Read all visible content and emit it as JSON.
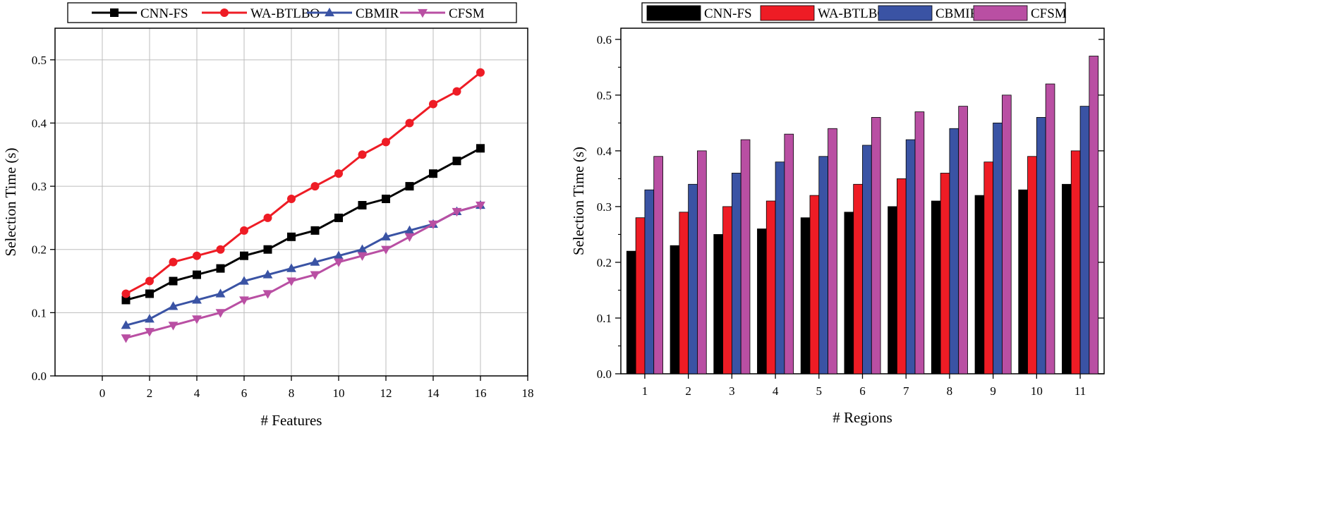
{
  "chart_data": [
    {
      "type": "line",
      "title": "",
      "xlabel": "# Features",
      "ylabel": "Selection Time (s)",
      "xlim": [
        -2,
        18
      ],
      "ylim": [
        0,
        0.55
      ],
      "xticks": [
        0,
        2,
        4,
        6,
        8,
        10,
        12,
        14,
        16,
        18
      ],
      "yticks": [
        0.0,
        0.1,
        0.2,
        0.3,
        0.4,
        0.5
      ],
      "ytick_labels": [
        "0.0",
        "0.1",
        "0.2",
        "0.3",
        "0.4",
        "0.5"
      ],
      "grid": true,
      "legend_position": "top",
      "x": [
        1,
        2,
        3,
        4,
        5,
        6,
        7,
        8,
        9,
        10,
        11,
        12,
        13,
        14,
        15,
        16
      ],
      "series": [
        {
          "name": "CNN-FS",
          "color": "#000000",
          "marker": "square",
          "values": [
            0.12,
            0.13,
            0.15,
            0.16,
            0.17,
            0.19,
            0.2,
            0.22,
            0.23,
            0.25,
            0.27,
            0.28,
            0.3,
            0.32,
            0.34,
            0.36
          ]
        },
        {
          "name": "WA-BTLBO",
          "color": "#ee1c25",
          "marker": "circle",
          "values": [
            0.13,
            0.15,
            0.18,
            0.19,
            0.2,
            0.23,
            0.25,
            0.28,
            0.3,
            0.32,
            0.35,
            0.37,
            0.4,
            0.43,
            0.45,
            0.48
          ]
        },
        {
          "name": "CBMIR",
          "color": "#3a53a4",
          "marker": "triangle-up",
          "values": [
            0.08,
            0.09,
            0.11,
            0.12,
            0.13,
            0.15,
            0.16,
            0.17,
            0.18,
            0.19,
            0.2,
            0.22,
            0.23,
            0.24,
            0.26,
            0.27
          ]
        },
        {
          "name": "CFSM",
          "color": "#b94fa3",
          "marker": "triangle-down",
          "values": [
            0.06,
            0.07,
            0.08,
            0.09,
            0.1,
            0.12,
            0.13,
            0.15,
            0.16,
            0.18,
            0.19,
            0.2,
            0.22,
            0.24,
            0.26,
            0.27
          ]
        }
      ]
    },
    {
      "type": "bar",
      "title": "",
      "xlabel": "# Regions",
      "ylabel": "Selection Time (s)",
      "ylim": [
        0,
        0.62
      ],
      "yticks": [
        0.0,
        0.1,
        0.2,
        0.3,
        0.4,
        0.5,
        0.6
      ],
      "ytick_labels": [
        "0.0",
        "0.1",
        "0.2",
        "0.3",
        "0.4",
        "0.5",
        "0.6"
      ],
      "grid": false,
      "legend_position": "top",
      "categories": [
        "1",
        "2",
        "3",
        "4",
        "5",
        "6",
        "7",
        "8",
        "9",
        "10",
        "11"
      ],
      "series": [
        {
          "name": "CNN-FS",
          "color": "#000000",
          "values": [
            0.22,
            0.23,
            0.25,
            0.26,
            0.28,
            0.29,
            0.3,
            0.31,
            0.32,
            0.33,
            0.34
          ]
        },
        {
          "name": "WA-BTLBO",
          "color": "#ee1c25",
          "values": [
            0.28,
            0.29,
            0.3,
            0.31,
            0.32,
            0.34,
            0.35,
            0.36,
            0.38,
            0.39,
            0.4
          ]
        },
        {
          "name": "CBMIR",
          "color": "#3a53a4",
          "values": [
            0.33,
            0.34,
            0.36,
            0.38,
            0.39,
            0.41,
            0.42,
            0.44,
            0.45,
            0.46,
            0.48
          ]
        },
        {
          "name": "CFSM",
          "color": "#b94fa3",
          "values": [
            0.39,
            0.4,
            0.42,
            0.43,
            0.44,
            0.46,
            0.47,
            0.48,
            0.5,
            0.52,
            0.57
          ]
        }
      ]
    }
  ]
}
